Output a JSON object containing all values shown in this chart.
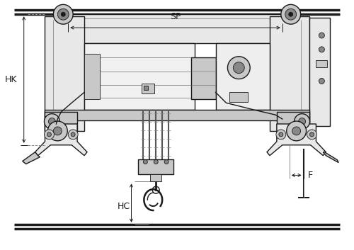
{
  "bg_color": "#ffffff",
  "line_color": "#1a1a1a",
  "gray_light": "#e8e8e8",
  "gray_mid": "#c8c8c8",
  "gray_dark": "#888888",
  "gray_very_dark": "#555555",
  "labels": {
    "SP": "SP",
    "HK": "HK",
    "HC": "HC",
    "F": "F"
  },
  "fig_width": 5.0,
  "fig_height": 3.53,
  "dpi": 100
}
